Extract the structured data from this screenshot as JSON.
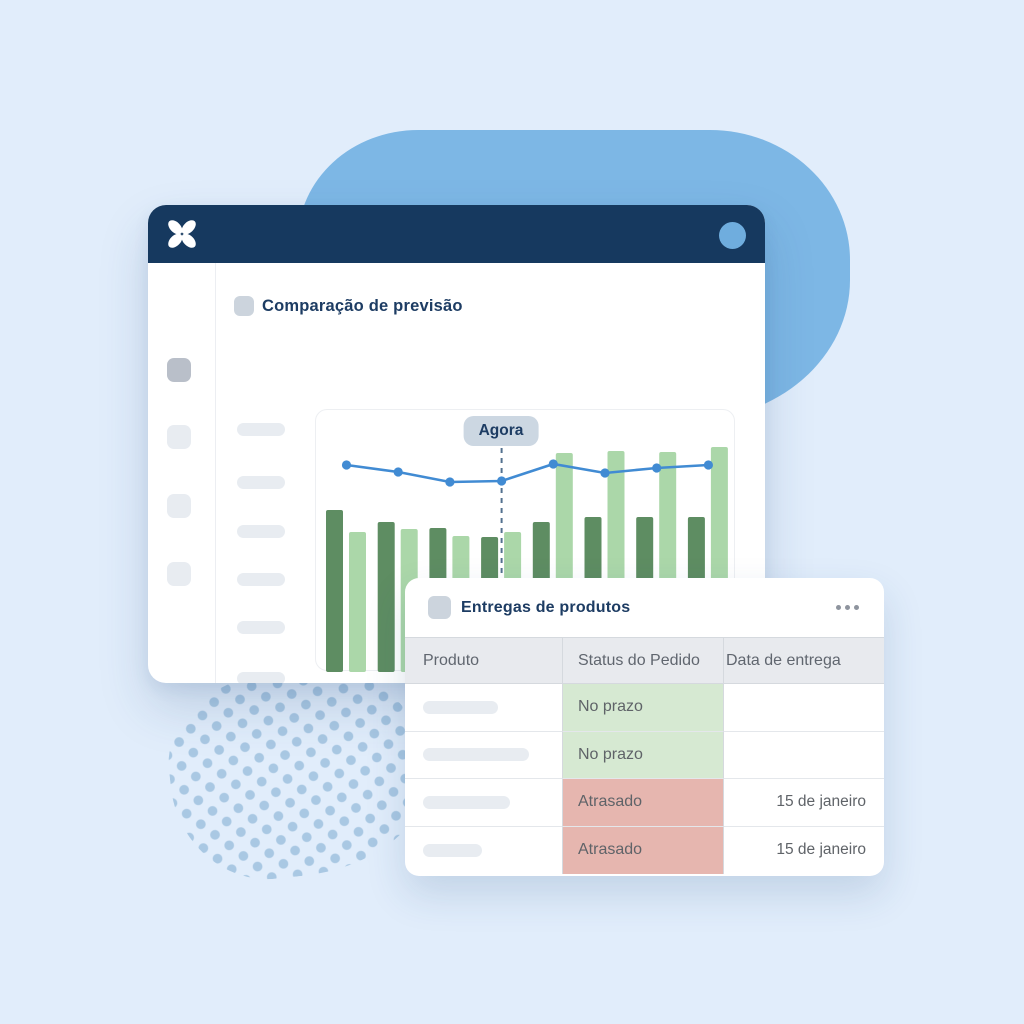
{
  "colors": {
    "bg": "#e1edfb",
    "blob": "#7db7e5",
    "navy": "#16395f",
    "navy-text": "#1d3c63",
    "avatar": "#6fadde",
    "bar-dark": "#5e8d62",
    "bar-light": "#abd7a9",
    "line": "#418bd3",
    "agora-bg": "#ccd7e2",
    "dash": "#54718f",
    "green": "#d6e9d2",
    "red": "#e6b6af",
    "th-bg": "#e8eaee",
    "th-text": "#60666f",
    "cell-text": "#5f6368",
    "dot": "#a9c8e3",
    "pill": "#e8ecf1",
    "sq-dark": "#b9bfc9",
    "sq-light": "#e8ecf1",
    "sq-blue": "#ccd4dd",
    "menu-dot": "#8e949e"
  },
  "titlebar": {
    "logo_icon": "flower-icon",
    "avatar_icon": "user-avatar"
  },
  "sidebar": {
    "nav_squares": [
      "active",
      "default",
      "default",
      "default"
    ],
    "skeleton_pill_count": 6
  },
  "chart_section": {
    "title": "Comparação de previsão"
  },
  "chart_data": {
    "type": "bar+line",
    "title": "Comparação de previsão",
    "annotation": "Agora",
    "annotation_index": 3,
    "axis_labels_visible": false,
    "note": "values are bar/line heights in px above chart baseline; no numeric axes shown in pixels",
    "categories": [
      "",
      "",
      "",
      "",
      "",
      "",
      "",
      ""
    ],
    "series": [
      {
        "name": "bars-dark-green",
        "type": "bar",
        "values": [
          162,
          150,
          144,
          135,
          150,
          155,
          155,
          155
        ]
      },
      {
        "name": "bars-light-green",
        "type": "bar",
        "values": [
          140,
          143,
          136,
          140,
          219,
          221,
          220,
          225
        ]
      },
      {
        "name": "forecast-line",
        "type": "line",
        "values": [
          207,
          200,
          190,
          191,
          208,
          199,
          204,
          207
        ]
      }
    ],
    "axis_placeholder_pills": 2
  },
  "table_card": {
    "title": "Entregas de produtos",
    "menu_icon": "ellipsis-icon",
    "columns": [
      "Produto",
      "Status do Pedido",
      "Data de entrega"
    ],
    "rows": [
      {
        "product_placeholder_width": 75,
        "status": "No prazo",
        "status_tone": "green",
        "date": ""
      },
      {
        "product_placeholder_width": 106,
        "status": "No prazo",
        "status_tone": "green",
        "date": ""
      },
      {
        "product_placeholder_width": 87,
        "status": "Atrasado",
        "status_tone": "red",
        "date": "15 de janeiro"
      },
      {
        "product_placeholder_width": 59,
        "status": "Atrasado",
        "status_tone": "red",
        "date": "15 de janeiro"
      }
    ]
  }
}
